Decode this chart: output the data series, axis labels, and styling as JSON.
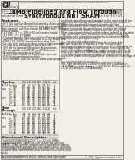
{
  "bg_color": "#f2efe9",
  "title_left1": "110, 100, & 200 BGA",
  "title_left2": "Commercial Temp",
  "title_left3": "Industrial Temp",
  "title_main1": "18Mb Pipelined and Flow Through",
  "title_main2": "Synchronous NBT SRAM",
  "title_right1": "200 MHz-133 MHz",
  "title_right2": "3.3 V or 3.3 V VDD",
  "title_right3": "2.5 V or 3.3 V I/O",
  "part_numbers_top": "GS8162Z36B-200/GS8162Z36B-133/GS8162Z36B-100/GS8162Z36B-85/GS8162Z36B-75/GS8162Z36C",
  "features": [
    "~NBT (No Bus Turn Around) functionality allows zero wait",
    " Read-Write-Read bus utilization, fully pre-compatible with",
    " both pipelined and flow through NB SAMP, RoBT TM and",
    " FPBITE SRAMs",
    "~3.3 V or 3.3 V +/-10% (+5% with power supply)",
    "~3.3 V or 3.3 V I/O supply",
    "~User configurable Pipelined and Flow Through mode",
    "~ZI-mode provides user selectable 8/18-line output drive",
    "~IDBS 2.0 1.3 V/GS-compatible Boundary Scan",
    "~On-chip write parity checking, even or odd selectable",
    "~On-chip write encoding and error detection",
    "~100 pin for Common Impedance Environments",
    "~Pin-compatible with 2M, 4M, and 8Mb devices",
    "~Burst mode operation (Free Run)",
    "~3 chip enable signals for easy depth expansion",
    "~IC Pin for automatic power-down",
    "~IEEE standard 1.88, .88, or 100-bump BGA package"
  ],
  "right_col_lines": [
    "read/write control inputs are sampled on the rising edge of the",
    "input clock. Burst-order control (LBO) must be tied to prevent",
    "last-to-first operation. Synchronous inputs latch the",
    "byte mode enables (BY) and Byte/Parity enable. Output holds can",
    "be used to override the synchronous control of the output",
    "drivers and use the SRAM's output drivers off every time.",
    "When outputs are internally controlled and isolated by the rising",
    "edge of the clock input. This feature eliminates complex OE",
    "chip write pulse generation required by synchronous SRAMs",
    "and simplifies input signal timing.",
    " ",
    "The GS8162Z36B/GS8162Z36C may be configured by",
    "the user to operate in Pipeline or Flow Through mode.",
    "Operating as a pipelined synchronous device, in addition to the",
    "rising edge-triggered registers that capture input signals, the",
    "device incorporates a rising-edge triggered output register. For",
    "read cycles, pipelined SRAM output data is temporarily stored",
    "in the edge-triggered output register during the active cycle",
    "and then released to the output drivers at the next rising edge of",
    "clock.",
    " ",
    "The GS8162Z36B/GS8162Z36C is implemented with",
    "GSI's high performance 0.18 technology and is available in",
    "a 110-BGA standard 64 bump (2.4x3 x 0.8), 100-bump (2.4 x",
    "4.5) or 100-bump (1.0) BGA package."
  ],
  "table_cols": [
    "-200",
    "-133",
    "-200",
    "-140",
    "-133",
    "-120",
    "Unit"
  ],
  "pipeline_label": "Pipeline",
  "pipeline_section": "SA-1-4",
  "pipeline_fCyc": [
    "4.8",
    "4.4",
    "3.33",
    "4.8",
    "7.3",
    "1.3",
    "ns"
  ],
  "pipeline_tCyc": [
    "230",
    "220",
    "300",
    "230",
    "133",
    "133",
    "ns"
  ],
  "pipeline_33_rows": [
    [
      "Cur (B)",
      "330",
      "280",
      "373",
      "200",
      "245",
      "180",
      "mA"
    ],
    [
      "Cur (S)",
      "430",
      "380",
      "473",
      "240",
      "380",
      "180",
      "mA"
    ],
    [
      "Cur (V)",
      "400",
      "180",
      "335",
      "140",
      "305",
      "135",
      "mA"
    ],
    [
      "Cur (A)",
      "470",
      "380",
      "143",
      "180",
      "360",
      "135",
      "mA"
    ]
  ],
  "pipeline_35_rows": [
    [
      "Cur (B)",
      "310",
      "150",
      "325",
      "180",
      "195",
      "181",
      "mA"
    ],
    [
      "Cur (S)",
      "340",
      "140",
      "335",
      "180",
      "205",
      "181",
      "mA"
    ],
    [
      "Cur (V)",
      "310",
      "140",
      "375",
      "130",
      "175",
      "141",
      "mA"
    ],
    [
      "Cur (A)",
      "375",
      "375",
      "375",
      "135",
      "380",
      "250",
      "mA"
    ]
  ],
  "flow_label": "Flow\nThrough",
  "flow_section": "SA-1-4-4",
  "flow_fCyc": [
    "3.3",
    "4.3",
    "4.33",
    "3.3",
    "7.3",
    "4.3",
    "ns"
  ],
  "flow_tCyc": [
    "3.3",
    "4.3",
    "4.33",
    "3.3",
    "7.3",
    "4.3",
    "ns"
  ],
  "flow_33_rows": [
    [
      "Cur (B)",
      "120",
      "140",
      "120",
      "115",
      "115",
      "125",
      "mA"
    ],
    [
      "Cur (S)",
      "120",
      "140",
      "120",
      "115",
      "115",
      "125",
      "mA"
    ],
    [
      "Cur (V)",
      "120",
      "140",
      "140",
      "115",
      "115",
      "125",
      "mA"
    ],
    [
      "Cur (A)",
      "120",
      "140",
      "140",
      "115",
      "115",
      "125",
      "mA"
    ]
  ],
  "flow_35_rows": [
    [
      "Cur (B)",
      "140",
      "145",
      "140",
      "115",
      "1445",
      "125",
      "mA"
    ],
    [
      "Cur (S)",
      "140",
      "145",
      "140",
      "115",
      "1445",
      "125",
      "mA"
    ],
    [
      "Cur (V)",
      "140",
      "145",
      "175",
      "135",
      "390",
      "375",
      "mA"
    ],
    [
      "Cur (A)",
      "175",
      "175",
      "175",
      "135",
      "390",
      "375",
      "mA"
    ]
  ],
  "func_desc_title": "Functional Description",
  "func_desc_lines": [
    "The GS8162Z36B/GS8162Z36C is a 512Kx36 18Mbit",
    "Synchronous Static SRAM. GSI's NBT SRAM (No Bus Turn)",
    "SRAM64, SRAM, or other optional control inputs from address",
    "flow through mode pipeline late clock SRAMs, allows utilization",
    "of all available bus bandwidth by eliminating the need to insert",
    "deadbus cycles when the device is accessed from read-to-write",
    "cycles.",
    " ",
    "Access is a synchronous device, address, data inputs, and"
  ],
  "footer_rev": "Rev. 1.08  4/2004",
  "footer_page": "1/25",
  "footer_copy": "© 2004, Giga Semiconductor Inc.",
  "footer_note": "Specifications are subject to change without notice. For latest information see http://www.gsitechnology.com"
}
